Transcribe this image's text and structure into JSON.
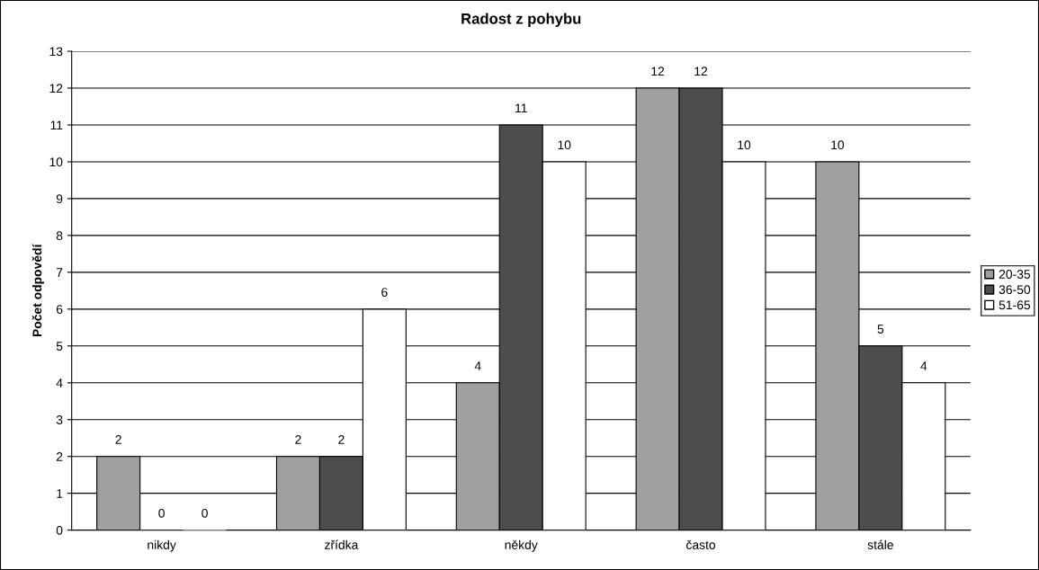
{
  "chart_data": {
    "type": "bar",
    "title": "Radost z pohybu",
    "ylabel": "Počet odpovědí",
    "categories": [
      "nikdy",
      "zřídka",
      "někdy",
      "často",
      "stále"
    ],
    "series": [
      {
        "name": "20-35",
        "color": "#a0a0a0",
        "values": [
          2,
          2,
          4,
          12,
          10
        ]
      },
      {
        "name": "36-50",
        "color": "#4d4d4d",
        "values": [
          0,
          2,
          11,
          12,
          5
        ]
      },
      {
        "name": "51-65",
        "color": "#ffffff",
        "values": [
          0,
          6,
          10,
          10,
          4
        ]
      }
    ],
    "ylim": [
      0,
      13
    ],
    "yticks": [
      0,
      1,
      2,
      3,
      4,
      5,
      6,
      7,
      8,
      9,
      10,
      11,
      12,
      13
    ],
    "grid": "y",
    "legend": "right",
    "data_labels": true
  }
}
